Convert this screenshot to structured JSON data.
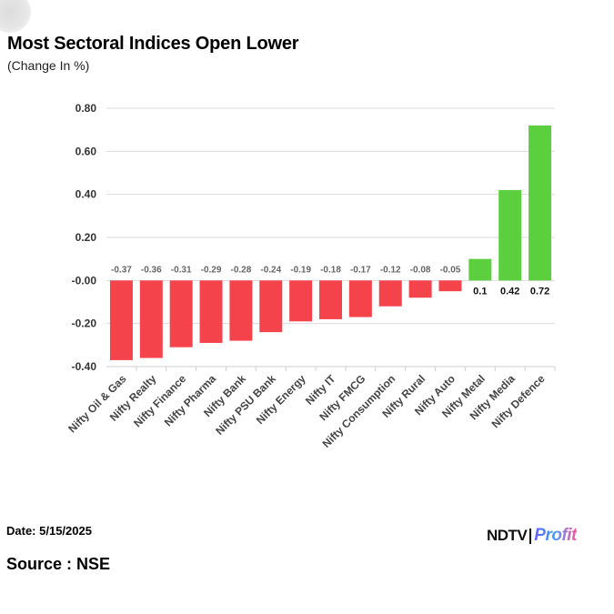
{
  "header": {
    "title": "Most Sectoral Indices Open Lower",
    "subtitle": "(Change In %)"
  },
  "footer": {
    "date": "Date: 5/15/2025",
    "source": "Source : NSE",
    "logo_ndtv": "NDTV",
    "logo_profit": "Profit"
  },
  "colors": {
    "negative": "#f5434c",
    "positive": "#5ccf3e",
    "grid": "#d9d9d9",
    "label_gray": "#666666"
  },
  "chart_data": {
    "type": "bar",
    "title": "Most Sectoral Indices Open Lower",
    "subtitle": "(Change In %)",
    "categories": [
      "Nifty Oil & Gas",
      "Nifty Realty",
      "Nifty Finance",
      "Nifty Pharma",
      "Nifty Bank",
      "Nifty PSU Bank",
      "Nifty Energy",
      "Nifty IT",
      "Nifty FMCG",
      "Nifty Consumption",
      "Nifty Rural",
      "Nifty Auto",
      "Nifty Metal",
      "Nifty Media",
      "Nifty Defence"
    ],
    "values": [
      -0.37,
      -0.36,
      -0.31,
      -0.29,
      -0.28,
      -0.24,
      -0.19,
      -0.18,
      -0.17,
      -0.12,
      -0.08,
      -0.05,
      0.1,
      0.42,
      0.72
    ],
    "data_labels": [
      "-0.37",
      "-0.36",
      "-0.31",
      "-0.29",
      "-0.28",
      "-0.24",
      "-0.19",
      "-0.18",
      "-0.17",
      "-0.12",
      "-0.08",
      "-0.05",
      "0.1",
      "0.42",
      "0.72"
    ],
    "ylim": [
      -0.4,
      0.8
    ],
    "yticks": [
      0.8,
      0.6,
      0.4,
      0.2,
      0.0,
      -0.2,
      -0.4
    ],
    "ytick_labels": [
      "0.80",
      "0.60",
      "0.40",
      "0.20",
      "-0.00",
      "-0.20",
      "-0.40"
    ],
    "grid": true,
    "legend": "none"
  }
}
